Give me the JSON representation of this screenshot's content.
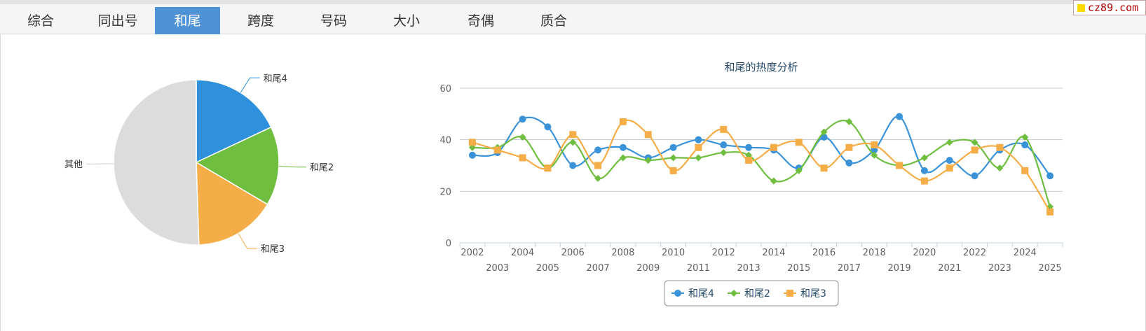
{
  "tabs": [
    {
      "label": "综合",
      "active": false
    },
    {
      "label": "同出号",
      "active": false
    },
    {
      "label": "和尾",
      "active": true
    },
    {
      "label": "跨度",
      "active": false
    },
    {
      "label": "号码",
      "active": false
    },
    {
      "label": "大小",
      "active": false
    },
    {
      "label": "奇偶",
      "active": false
    },
    {
      "label": "质合",
      "active": false
    }
  ],
  "watermark": "cz89.com",
  "colors": {
    "accent": "#4f93d6",
    "series_4": "#3a93d8",
    "series_2": "#6fbe3f",
    "series_3": "#f5ad47",
    "other": "#dcdcdc"
  },
  "chart_data": [
    {
      "type": "pie",
      "slices": [
        {
          "label": "和尾4",
          "value": 18,
          "color": "#2f91dc"
        },
        {
          "label": "和尾2",
          "value": 15.5,
          "color": "#6fbe3f"
        },
        {
          "label": "和尾3",
          "value": 16,
          "color": "#f5ad47"
        },
        {
          "label": "其他",
          "value": 50.5,
          "color": "#dcdcdc"
        }
      ]
    },
    {
      "type": "line",
      "title": "和尾的热度分析",
      "x": [
        "2002",
        "2003",
        "2004",
        "2005",
        "2006",
        "2007",
        "2008",
        "2009",
        "2010",
        "2011",
        "2012",
        "2013",
        "2014",
        "2015",
        "2016",
        "2017",
        "2018",
        "2019",
        "2020",
        "2021",
        "2022",
        "2023",
        "2024",
        "2025"
      ],
      "ylim": [
        0,
        60
      ],
      "yticks": [
        0,
        20,
        40,
        60
      ],
      "grid": true,
      "legend_position": "bottom",
      "series": [
        {
          "name": "和尾4",
          "color": "#3a93d8",
          "marker": "circle",
          "values": [
            34,
            35,
            48,
            45,
            30,
            36,
            37,
            33,
            37,
            40,
            38,
            37,
            36,
            29,
            41,
            31,
            36,
            49,
            28,
            32,
            26,
            36,
            38,
            26
          ]
        },
        {
          "name": "和尾2",
          "color": "#6fbe3f",
          "marker": "diamond",
          "values": [
            37,
            37,
            41,
            29,
            39,
            25,
            33,
            32,
            33,
            33,
            35,
            34,
            24,
            28,
            43,
            47,
            34,
            30,
            33,
            39,
            39,
            29,
            41,
            14
          ]
        },
        {
          "name": "和尾3",
          "color": "#f5ad47",
          "marker": "square",
          "values": [
            39,
            36,
            33,
            29,
            42,
            30,
            47,
            42,
            28,
            37,
            44,
            32,
            37,
            39,
            29,
            37,
            38,
            30,
            24,
            29,
            36,
            37,
            28,
            12
          ]
        }
      ]
    }
  ]
}
